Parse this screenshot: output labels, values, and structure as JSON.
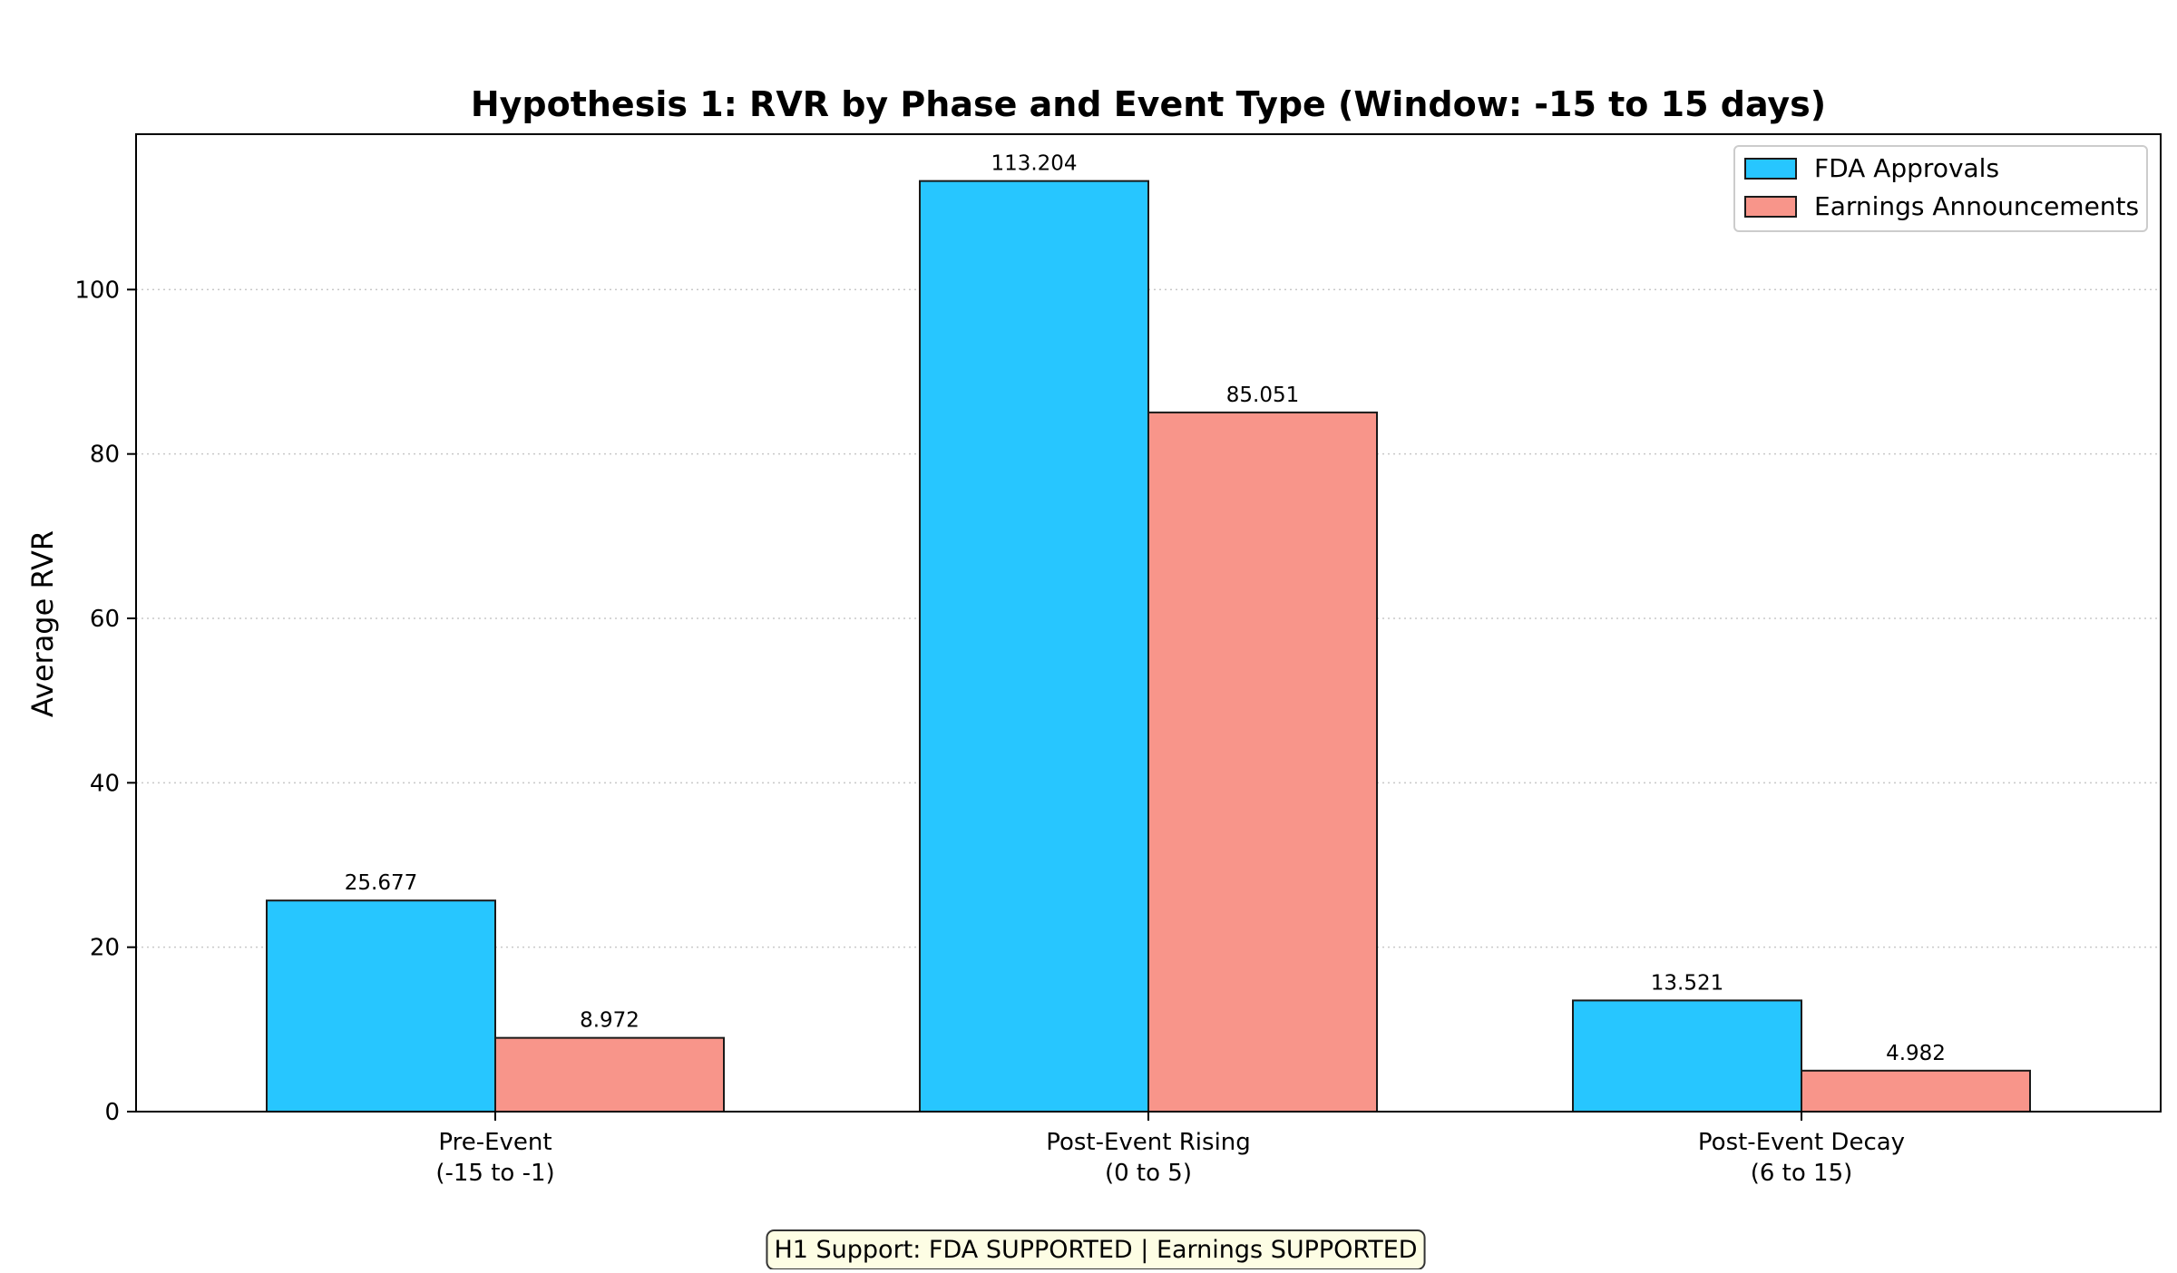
{
  "chart_data": {
    "type": "bar",
    "title": "Hypothesis 1: RVR by Phase and Event Type (Window: -15 to 15 days)",
    "xlabel": "",
    "ylabel": "Average RVR",
    "categories": [
      [
        "Pre-Event",
        "(-15 to -1)"
      ],
      [
        "Post-Event Rising",
        "(0 to 5)"
      ],
      [
        "Post-Event Decay",
        "(6 to 15)"
      ]
    ],
    "series": [
      {
        "name": "FDA Approvals",
        "color": "#27c6ff",
        "values": [
          25.677,
          113.204,
          13.521
        ],
        "labels": [
          "25.677",
          "113.204",
          "13.521"
        ]
      },
      {
        "name": "Earnings Announcements",
        "color": "#f8958a",
        "values": [
          8.972,
          85.051,
          4.982
        ],
        "labels": [
          "8.972",
          "85.051",
          "4.982"
        ]
      }
    ],
    "ylim": [
      0,
      118.9
    ],
    "yticks": [
      0,
      20,
      40,
      60,
      80,
      100
    ],
    "grid": "y-dotted",
    "legend": "top-right",
    "annotation": "H1 Support: FDA SUPPORTED | Earnings SUPPORTED"
  }
}
